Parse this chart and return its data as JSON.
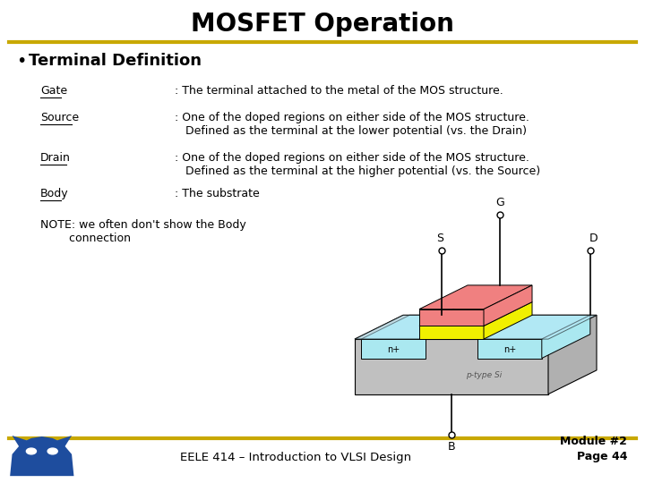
{
  "title": "MOSFET Operation",
  "title_fontsize": 20,
  "title_fontweight": "bold",
  "background_color": "#ffffff",
  "header_line_color": "#c8a800",
  "footer_line_color": "#c8a800",
  "bullet_header": "Terminal Definition",
  "terms": [
    {
      "label": "Gate",
      "definition": ": The terminal attached to the metal of the MOS structure."
    },
    {
      "label": "Source",
      "definition": ": One of the doped regions on either side of the MOS structure.\n   Defined as the terminal at the lower potential (vs. the Drain)"
    },
    {
      "label": "Drain",
      "definition": ": One of the doped regions on either side of the MOS structure.\n   Defined as the terminal at the higher potential (vs. the Source)"
    },
    {
      "label": "Body",
      "definition": ": The substrate"
    }
  ],
  "note_text": "NOTE: we often don't show the Body\n        connection",
  "footer_text": "EELE 414 – Introduction to VLSI Design",
  "footer_module": "Module #2\nPage 44",
  "mosfet_colors": {
    "substrate_front": "#c0c0c0",
    "substrate_top": "#d0d0d0",
    "substrate_right": "#b0b0b0",
    "n_region": "#aae8f0",
    "metal": "#f08080",
    "oxide": "#f0f000",
    "top_surface": "#b8e8f8"
  }
}
